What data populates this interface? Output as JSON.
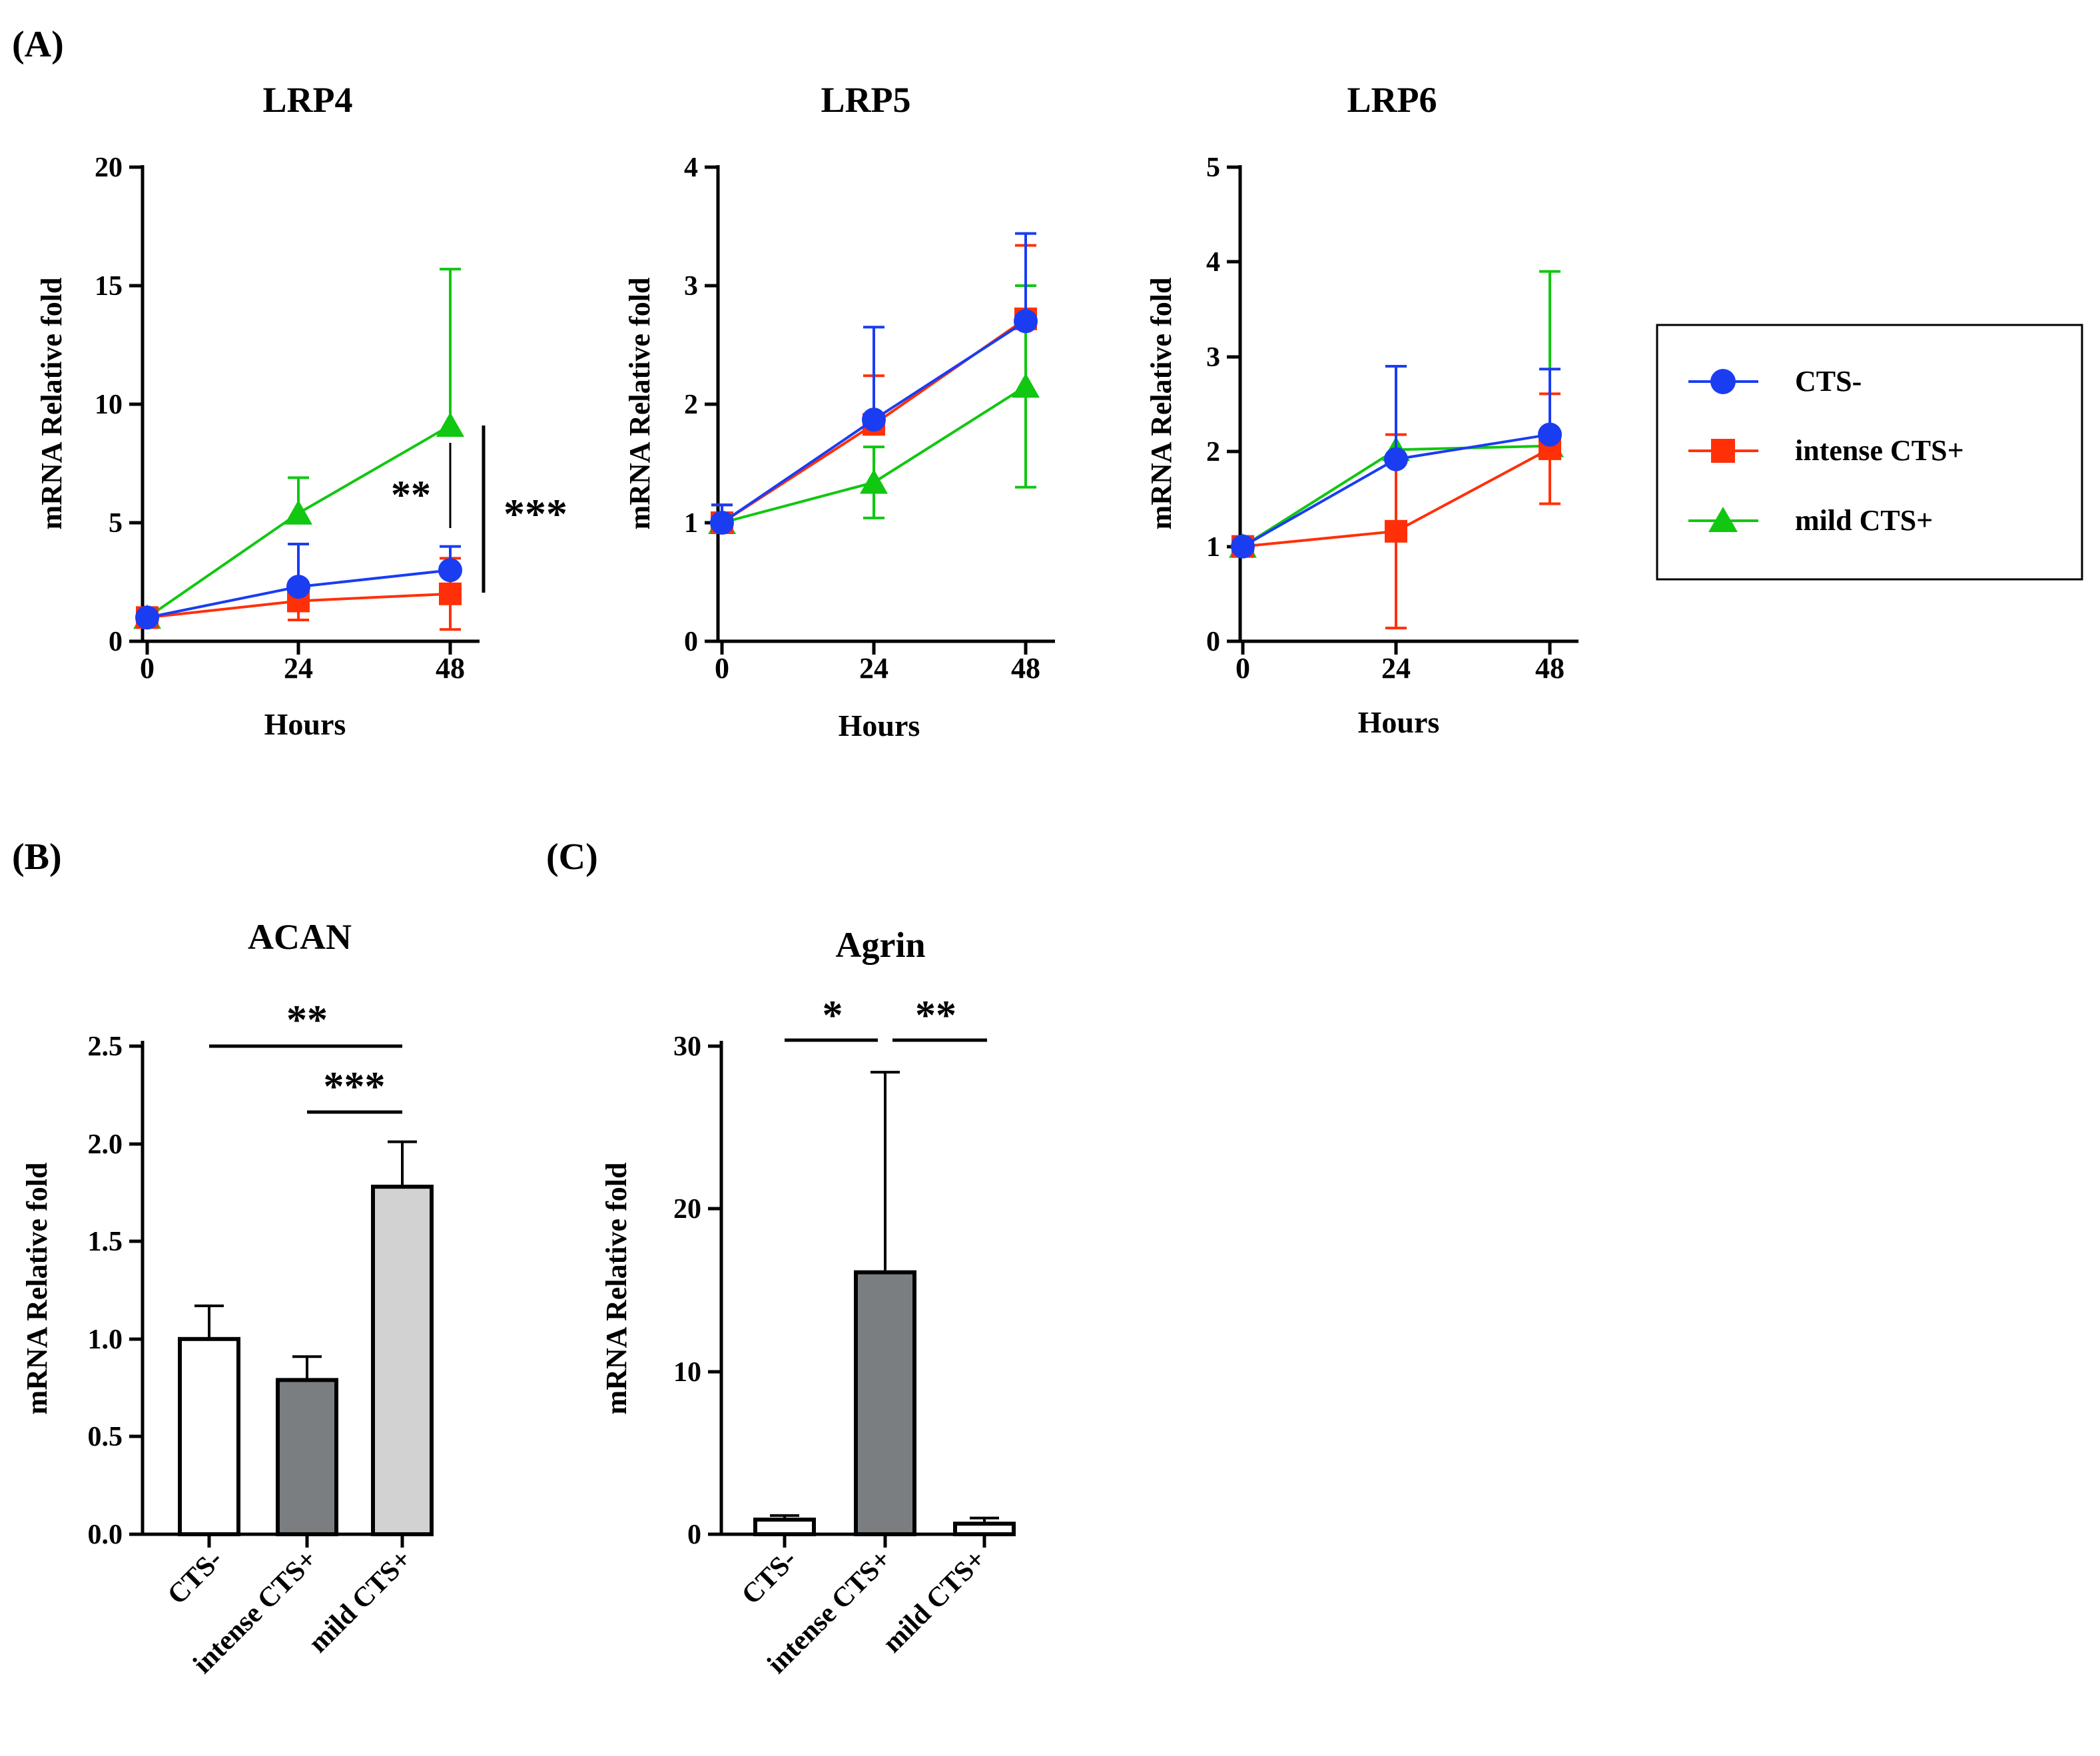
{
  "figure": {
    "panel_labels": [
      "(A)",
      "(B)",
      "(C)"
    ],
    "colors": {
      "cts_minus": "#1a3df2",
      "intense": "#ff3008",
      "mild": "#11c711",
      "bar_white": "#ffffff",
      "bar_dark": "#7a7e80",
      "bar_light": "#d2d2d2",
      "axis": "#000000"
    },
    "legend": {
      "items": [
        {
          "label": "CTS-",
          "marker": "circle",
          "color": "#1a3df2"
        },
        {
          "label": "intense CTS+",
          "marker": "square",
          "color": "#ff3008"
        },
        {
          "label": "mild CTS+",
          "marker": "triangle",
          "color": "#11c711"
        }
      ]
    }
  },
  "chart_data": [
    {
      "type": "line",
      "panel": "(A)",
      "title": "LRP4",
      "xlabel": "Hours",
      "ylabel": "mRNA Relative fold",
      "x": [
        0,
        24,
        48
      ],
      "xticks": [
        "0",
        "24",
        "48"
      ],
      "ylim": [
        0,
        20
      ],
      "yticks": [
        "0",
        "5",
        "10",
        "15",
        "20"
      ],
      "series": [
        {
          "name": "CTS-",
          "values": [
            1.0,
            2.3,
            3.0
          ],
          "error": [
            0.1,
            1.8,
            1.0
          ]
        },
        {
          "name": "intense CTS+",
          "values": [
            1.0,
            1.7,
            2.0
          ],
          "error": [
            0.1,
            0.8,
            1.5
          ]
        },
        {
          "name": "mild CTS+",
          "values": [
            1.0,
            5.4,
            9.1
          ],
          "error": [
            0.1,
            1.5,
            6.6
          ]
        }
      ],
      "annotations": [
        "**",
        "***"
      ]
    },
    {
      "type": "line",
      "panel": "(A)",
      "title": "LRP5",
      "xlabel": "Hours",
      "ylabel": "mRNA Relative fold",
      "x": [
        0,
        24,
        48
      ],
      "xticks": [
        "0",
        "24",
        "48"
      ],
      "ylim": [
        0,
        4
      ],
      "yticks": [
        "0",
        "1",
        "2",
        "3",
        "4"
      ],
      "series": [
        {
          "name": "CTS-",
          "values": [
            1.0,
            1.87,
            2.7
          ],
          "error": [
            0.15,
            0.78,
            0.74
          ]
        },
        {
          "name": "intense CTS+",
          "values": [
            1.0,
            1.83,
            2.72
          ],
          "error": [
            0.15,
            0.41,
            0.62
          ]
        },
        {
          "name": "mild CTS+",
          "values": [
            1.0,
            1.34,
            2.15
          ],
          "error": [
            0.15,
            0.3,
            0.85
          ]
        }
      ]
    },
    {
      "type": "line",
      "panel": "(A)",
      "title": "LRP6",
      "xlabel": "Hours",
      "ylabel": "mRNA Relative fold",
      "x": [
        0,
        24,
        48
      ],
      "xticks": [
        "0",
        "24",
        "48"
      ],
      "ylim": [
        0,
        5
      ],
      "yticks": [
        "0",
        "1",
        "2",
        "3",
        "4",
        "5"
      ],
      "series": [
        {
          "name": "CTS-",
          "values": [
            1.0,
            1.92,
            2.18
          ],
          "error": [
            0.05,
            0.98,
            0.69
          ]
        },
        {
          "name": "intense CTS+",
          "values": [
            1.0,
            1.16,
            2.03
          ],
          "error": [
            0.05,
            1.02,
            0.58
          ]
        },
        {
          "name": "mild CTS+",
          "values": [
            1.0,
            2.02,
            2.06
          ],
          "error": [
            0.05,
            0.88,
            1.84
          ]
        }
      ]
    },
    {
      "type": "bar",
      "panel": "(B)",
      "title": "ACAN",
      "xlabel": "",
      "ylabel": "mRNA Relative fold",
      "categories": [
        "CTS-",
        "intense CTS+",
        "mild CTS+"
      ],
      "values": [
        1.0,
        0.79,
        1.78
      ],
      "error": [
        0.17,
        0.12,
        0.23
      ],
      "ylim": [
        0,
        2.5
      ],
      "yticks": [
        "0.0",
        "0.5",
        "1.0",
        "1.5",
        "2.0",
        "2.5"
      ],
      "annotations": [
        "**",
        "***"
      ]
    },
    {
      "type": "bar",
      "panel": "(C)",
      "title": "Agrin",
      "xlabel": "",
      "ylabel": "mRNA Relative fold",
      "categories": [
        "CTS-",
        "intense CTS+",
        "mild CTS+"
      ],
      "values": [
        0.9,
        16.1,
        0.65
      ],
      "error": [
        0.25,
        12.3,
        0.35
      ],
      "ylim": [
        0,
        30
      ],
      "yticks": [
        "0",
        "10",
        "20",
        "30"
      ],
      "annotations": [
        "*",
        "**"
      ]
    }
  ]
}
